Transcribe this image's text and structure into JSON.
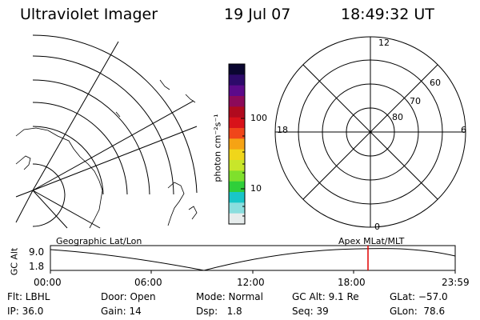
{
  "header": {
    "title": "Ultraviolet Imager",
    "date": "19 Jul 07",
    "time": "18:49:32 UT"
  },
  "colorbar": {
    "label": "photon cm⁻²s⁻¹",
    "ticks": [
      "100",
      "10"
    ],
    "colors": [
      "#0a0630",
      "#2d0a6a",
      "#5c0a8a",
      "#8c0a5a",
      "#b00a1e",
      "#d8121a",
      "#f0461a",
      "#f6a314",
      "#f0d61a",
      "#c8e62a",
      "#7fe02c",
      "#2fcf3a",
      "#19c6c8",
      "#8adede",
      "#e6ecec"
    ]
  },
  "polar_plot": {
    "mlt_labels": [
      "12",
      "18",
      "6",
      "0"
    ],
    "lat_labels": [
      "60",
      "70",
      "80"
    ]
  },
  "timeline": {
    "left_label": "Geographic Lat/Lon",
    "right_label": "Apex MLat/MLT",
    "y_axis_label": "GC Alt",
    "y_ticks": [
      "9.0",
      "1.8"
    ],
    "x_ticks": [
      "00:00",
      "06:00",
      "12:00",
      "18:00",
      "23:59"
    ],
    "current_marker_color": "#e00000"
  },
  "info": {
    "flt": "Flt: LBHL",
    "ip": "IP: 36.0",
    "door": "Door: Open",
    "gain": "Gain: 14",
    "mode": "Mode: Normal",
    "dsp": "Dsp:   1.8",
    "gcalt": "GC Alt: 9.1 Re",
    "seq": "Seq: 39",
    "glat": "GLat: −57.0",
    "glon": "GLon:  78.6"
  }
}
